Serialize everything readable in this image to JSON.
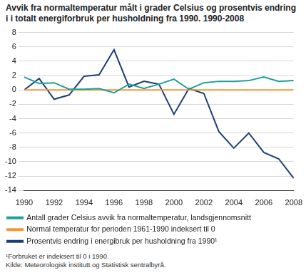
{
  "chart_data": {
    "type": "line",
    "title": "Avvik fra normaltemperatur målt i grader Celsius og prosentvis endring i i totalt energiforbruk per husholdning fra 1990. 1990-2008",
    "x": [
      1990,
      1991,
      1992,
      1993,
      1994,
      1995,
      1996,
      1997,
      1998,
      1999,
      2000,
      2001,
      2002,
      2003,
      2004,
      2005,
      2006,
      2007,
      2008
    ],
    "series": [
      {
        "name": "Antall grader Celsius avvik fra normaltemperatur, landsgjennomsnitt",
        "color": "#1f9e9b",
        "values": [
          1.8,
          0.9,
          1.0,
          0.1,
          0.1,
          0.2,
          -0.4,
          0.8,
          0.2,
          0.8,
          1.5,
          0.1,
          1.0,
          1.2,
          1.2,
          1.3,
          1.8,
          1.2,
          1.3
        ]
      },
      {
        "name": "Normal temperatur for perioden 1961-1990 indeksert til 0",
        "color": "#f3973a",
        "values": [
          0,
          0,
          0,
          0,
          0,
          0,
          0,
          0,
          0,
          0,
          0,
          0,
          0,
          0,
          0,
          0,
          0,
          0,
          0
        ]
      },
      {
        "name": "Prosentvis endring i energibruk per husholdning fra 1990¹",
        "color": "#1d3f78",
        "values": [
          0,
          1.6,
          -1.3,
          -0.7,
          1.9,
          2.1,
          5.6,
          0.4,
          1.2,
          0.8,
          -3.4,
          0.2,
          -0.5,
          -5.8,
          -8.1,
          -6.0,
          -8.7,
          -9.6,
          -12.3
        ]
      }
    ],
    "xlim": [
      1990,
      2008
    ],
    "xticks": [
      1990,
      1992,
      1994,
      1996,
      1998,
      2000,
      2002,
      2004,
      2006,
      2008
    ],
    "ylim": [
      -14,
      8
    ],
    "yticks": [
      -14,
      -12,
      -10,
      -8,
      -6,
      -4,
      -2,
      0,
      2,
      4,
      6,
      8
    ],
    "grid": true,
    "legend": "bottom",
    "footnote": "¹Forbruket er indeksert til 0 i 1990.",
    "source": "Kilde: Meteorologisk institutt og Statistisk sentralbyrå."
  }
}
